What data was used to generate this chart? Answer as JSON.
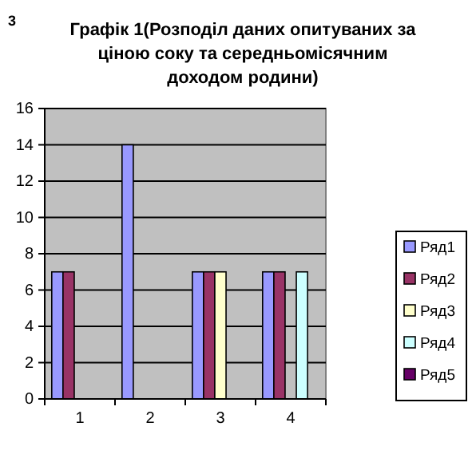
{
  "chart_data": {
    "type": "bar",
    "title": "Графік 1(Розподіл даних опитуваних за ціною соку та середньомісячним доходом родини)",
    "annotations": [
      "3"
    ],
    "categories": [
      "1",
      "2",
      "3",
      "4"
    ],
    "series": [
      {
        "name": "Ряд1",
        "color": "#9999ff",
        "values": [
          7,
          14,
          7,
          7
        ]
      },
      {
        "name": "Ряд2",
        "color": "#993366",
        "values": [
          7,
          null,
          7,
          7
        ]
      },
      {
        "name": "Ряд3",
        "color": "#ffffcc",
        "values": [
          null,
          null,
          7,
          null
        ]
      },
      {
        "name": "Ряд4",
        "color": "#ccffff",
        "values": [
          null,
          null,
          null,
          7
        ]
      },
      {
        "name": "Ряд5",
        "color": "#660066",
        "values": [
          null,
          null,
          null,
          null
        ]
      }
    ],
    "ylim": [
      0,
      16
    ],
    "yticks": [
      0,
      2,
      4,
      6,
      8,
      10,
      12,
      14,
      16
    ],
    "grid": "y",
    "legend": "right"
  }
}
